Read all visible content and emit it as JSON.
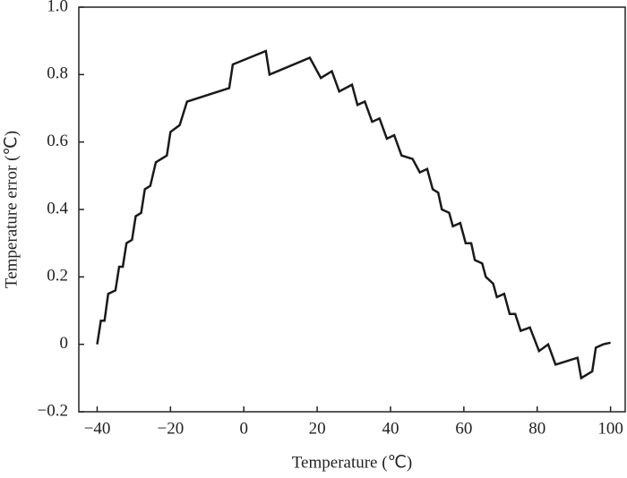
{
  "chart_data": {
    "type": "line",
    "x_label": "Temperature (℃)",
    "y_label": "Temperature error (℃)",
    "xlim": [
      -45,
      104
    ],
    "ylim": [
      -0.2,
      1.0
    ],
    "xticks": [
      {
        "value": -40,
        "label": "−40"
      },
      {
        "value": -20,
        "label": "−20"
      },
      0,
      20,
      40,
      60,
      80,
      100
    ],
    "yticks": [
      {
        "value": -0.2,
        "label": "−0.2"
      },
      0,
      0.2,
      0.4,
      0.6,
      0.8,
      {
        "value": 1.0,
        "label": "1.0"
      }
    ],
    "grid": false,
    "series": [
      {
        "color": "#1a1a1a",
        "x": [
          -40,
          -39,
          -38,
          -37,
          -35,
          -34,
          -33,
          -32,
          -30.5,
          -29.5,
          -28,
          -27,
          -25.5,
          -24,
          -21,
          -20,
          -17.5,
          -15.5,
          -4,
          -3,
          6,
          7,
          18,
          21,
          24,
          26,
          29.5,
          31,
          33,
          35,
          37,
          39,
          41,
          43,
          46,
          48,
          50,
          51.5,
          53,
          54,
          56,
          57,
          59,
          60.5,
          62,
          63,
          65,
          66,
          68,
          69,
          71,
          72.5,
          74,
          75.5,
          78,
          80.5,
          83,
          85,
          91,
          92,
          95,
          96,
          98,
          100
        ],
        "values": [
          0,
          0.07,
          0.07,
          0.15,
          0.16,
          0.23,
          0.23,
          0.3,
          0.31,
          0.38,
          0.39,
          0.46,
          0.47,
          0.54,
          0.56,
          0.63,
          0.65,
          0.72,
          0.76,
          0.83,
          0.87,
          0.8,
          0.85,
          0.79,
          0.81,
          0.75,
          0.77,
          0.71,
          0.72,
          0.66,
          0.67,
          0.61,
          0.62,
          0.56,
          0.55,
          0.51,
          0.52,
          0.46,
          0.45,
          0.4,
          0.39,
          0.35,
          0.36,
          0.3,
          0.3,
          0.25,
          0.24,
          0.2,
          0.18,
          0.14,
          0.15,
          0.09,
          0.09,
          0.04,
          0.05,
          -0.02,
          0,
          -0.06,
          -0.04,
          -0.1,
          -0.08,
          -0.01,
          0,
          0.005
        ]
      }
    ]
  }
}
